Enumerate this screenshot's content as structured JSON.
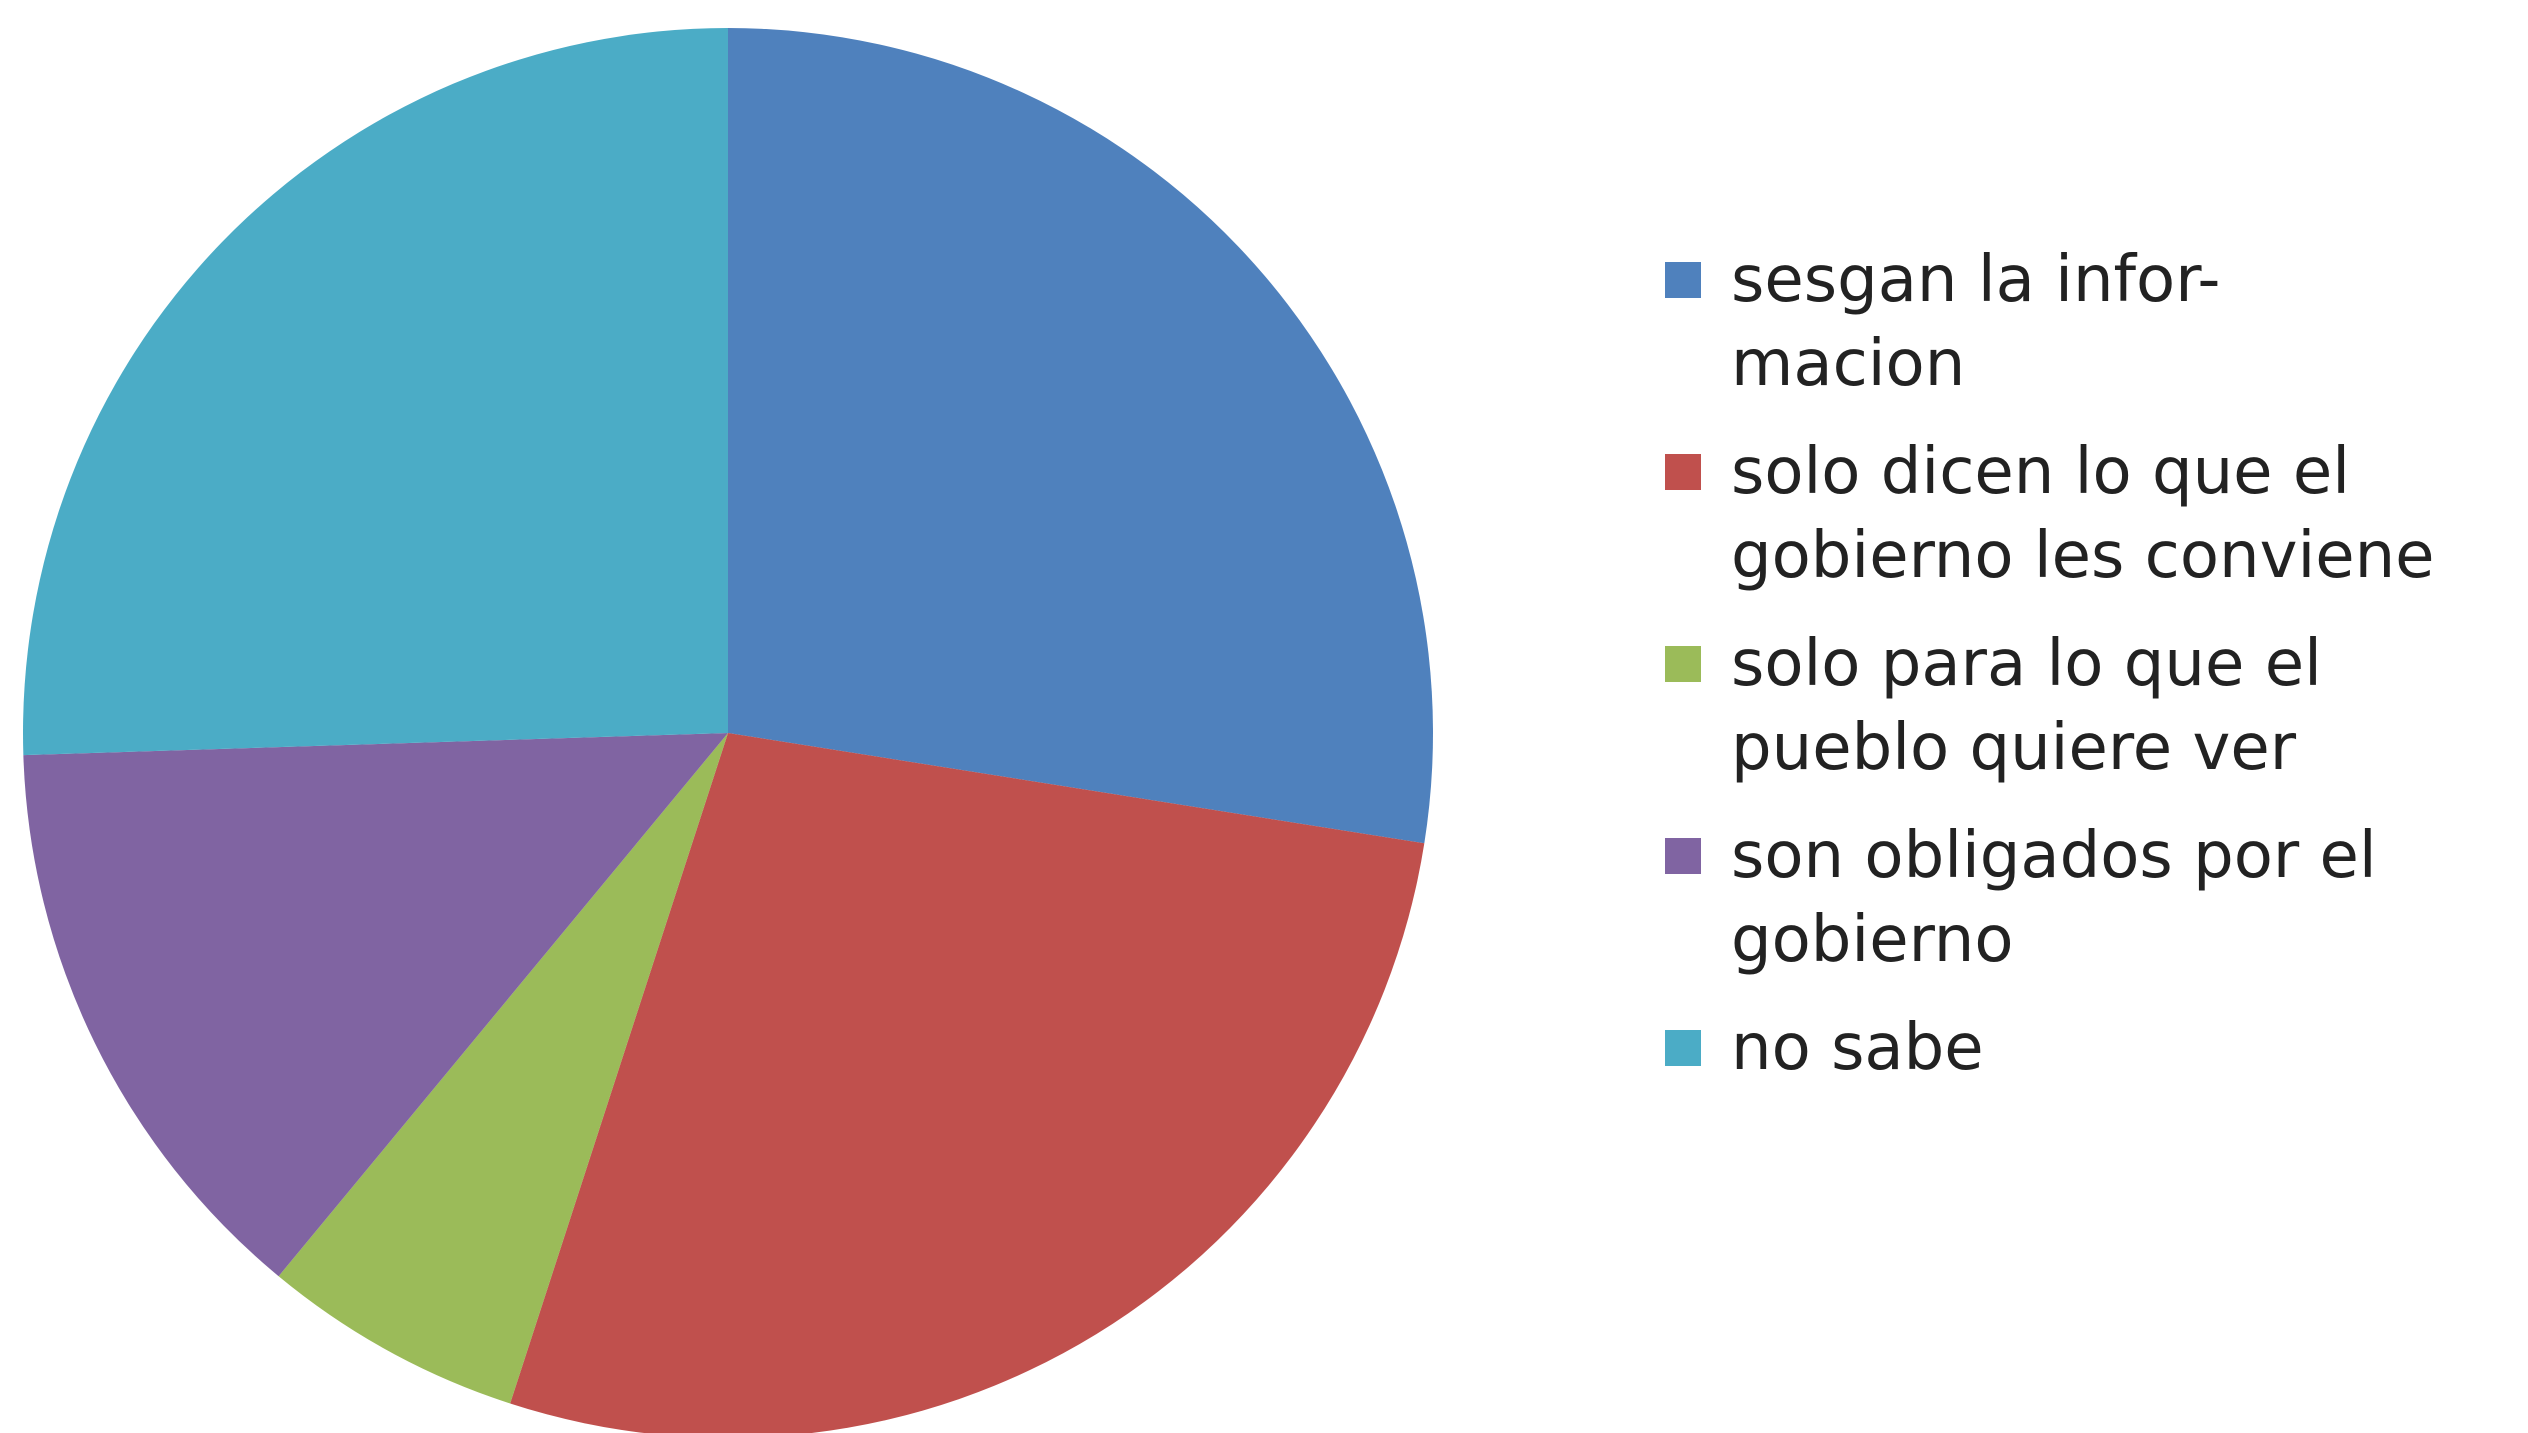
{
  "chart_data": {
    "type": "pie",
    "title": "",
    "start_angle_deg": 0,
    "direction": "clockwise",
    "legend_position": "right",
    "slices": [
      {
        "label": "sesgan la infor-\nmacion",
        "value": 27.5,
        "color": "#4F81BD"
      },
      {
        "label": "solo dicen lo que el\ngobierno les conviene",
        "value": 27.5,
        "color": "#C0504D"
      },
      {
        "label": "solo para lo que el\npueblo quiere ver",
        "value": 6,
        "color": "#9BBB59"
      },
      {
        "label": "son obligados por el\ngobierno",
        "value": 13.5,
        "color": "#8064A2"
      },
      {
        "label": "no sabe",
        "value": 25.5,
        "color": "#4BACC6"
      }
    ]
  }
}
